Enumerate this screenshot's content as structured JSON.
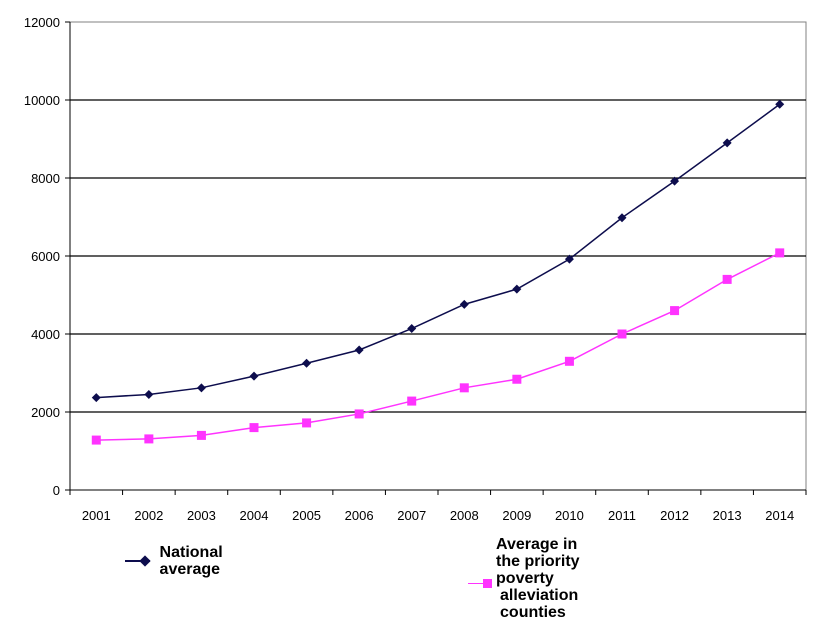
{
  "chart_data": {
    "type": "line",
    "title": "",
    "xlabel": "",
    "ylabel": "",
    "categories": [
      "2001",
      "2002",
      "2003",
      "2004",
      "2005",
      "2006",
      "2007",
      "2008",
      "2009",
      "2010",
      "2011",
      "2012",
      "2013",
      "2014"
    ],
    "ylim": [
      0,
      12000
    ],
    "yticks": [
      0,
      2000,
      4000,
      6000,
      8000,
      10000,
      12000
    ],
    "grid": "horizontal",
    "legend_position": "bottom",
    "series": [
      {
        "name": "National average",
        "color": "#0d0d4d",
        "marker": "diamond",
        "values": [
          2370,
          2450,
          2620,
          2920,
          3250,
          3590,
          4140,
          4760,
          5150,
          5920,
          6980,
          7920,
          8900,
          9890
        ]
      },
      {
        "name": "Average in the priority poverty alleviation counties",
        "color": "#ff33ff",
        "marker": "square",
        "values": [
          1280,
          1310,
          1400,
          1600,
          1720,
          1950,
          2280,
          2620,
          2840,
          3300,
          4000,
          4600,
          5400,
          6080
        ]
      }
    ]
  },
  "legend": {
    "series1_label": "National average",
    "series2_label_line1": "Average in the priority poverty",
    "series2_label_line2": "alleviation counties"
  }
}
